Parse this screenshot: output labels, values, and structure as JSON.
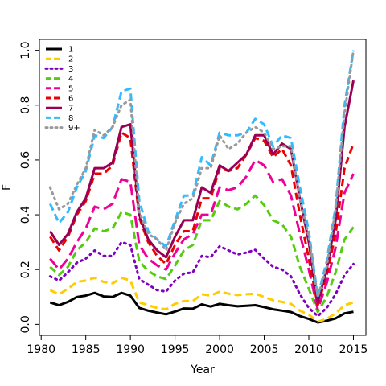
{
  "chart_data": {
    "type": "line",
    "xlabel": "Year",
    "ylabel": "F",
    "xlim": [
      1980.5,
      1915.9
    ],
    "ylim": [
      -0.04,
      1.04
    ],
    "x_ticks": [
      1980,
      1985,
      1990,
      1995,
      2000,
      2005,
      2010,
      2015
    ],
    "y_ticks": [
      0.0,
      0.2,
      0.4,
      0.6,
      0.8,
      1.0
    ],
    "y_tick_labels": [
      "0.0",
      "0.2",
      "0.4",
      "0.6",
      "0.8",
      "1.0"
    ],
    "legend_position": "top-left",
    "grid": false,
    "x": [
      1981,
      1982,
      1983,
      1984,
      1985,
      1986,
      1987,
      1988,
      1989,
      1990,
      1991,
      1992,
      1993,
      1994,
      1995,
      1996,
      1997,
      1998,
      1999,
      2000,
      2001,
      2002,
      2003,
      2004,
      2005,
      2006,
      2007,
      2008,
      2009,
      2010,
      2011,
      2012,
      2013,
      2014,
      2015
    ],
    "series": [
      {
        "name": "1",
        "color": "#000000",
        "dash": "solid",
        "values": [
          0.08,
          0.07,
          0.082,
          0.1,
          0.105,
          0.115,
          0.102,
          0.1,
          0.115,
          0.105,
          0.06,
          0.05,
          0.043,
          0.037,
          0.047,
          0.058,
          0.057,
          0.073,
          0.065,
          0.075,
          0.07,
          0.066,
          0.068,
          0.07,
          0.063,
          0.055,
          0.05,
          0.045,
          0.03,
          0.02,
          0.007,
          0.013,
          0.022,
          0.04,
          0.046
        ]
      },
      {
        "name": "2",
        "color": "#ffcc00",
        "dash": "dashed",
        "values": [
          0.125,
          0.11,
          0.13,
          0.155,
          0.16,
          0.17,
          0.155,
          0.15,
          0.17,
          0.16,
          0.08,
          0.07,
          0.06,
          0.055,
          0.075,
          0.085,
          0.085,
          0.11,
          0.105,
          0.12,
          0.112,
          0.107,
          0.11,
          0.112,
          0.1,
          0.088,
          0.082,
          0.075,
          0.05,
          0.035,
          0.01,
          0.02,
          0.04,
          0.07,
          0.08
        ]
      },
      {
        "name": "3",
        "color": "#7f00bf",
        "dash": "dotted",
        "values": [
          0.175,
          0.16,
          0.19,
          0.225,
          0.24,
          0.27,
          0.25,
          0.25,
          0.3,
          0.29,
          0.165,
          0.145,
          0.125,
          0.12,
          0.16,
          0.185,
          0.19,
          0.25,
          0.245,
          0.285,
          0.27,
          0.255,
          0.262,
          0.272,
          0.24,
          0.21,
          0.2,
          0.175,
          0.11,
          0.06,
          0.03,
          0.06,
          0.11,
          0.18,
          0.22
        ]
      },
      {
        "name": "4",
        "color": "#55cc11",
        "dash": "dashed",
        "values": [
          0.21,
          0.18,
          0.21,
          0.27,
          0.3,
          0.35,
          0.34,
          0.35,
          0.41,
          0.4,
          0.23,
          0.195,
          0.175,
          0.165,
          0.215,
          0.27,
          0.29,
          0.38,
          0.38,
          0.45,
          0.43,
          0.42,
          0.44,
          0.47,
          0.435,
          0.38,
          0.365,
          0.32,
          0.21,
          0.13,
          0.045,
          0.1,
          0.19,
          0.31,
          0.355
        ]
      },
      {
        "name": "5",
        "color": "#ee0099",
        "dash": "longdash",
        "values": [
          0.24,
          0.2,
          0.24,
          0.3,
          0.35,
          0.43,
          0.42,
          0.44,
          0.53,
          0.52,
          0.29,
          0.24,
          0.215,
          0.2,
          0.26,
          0.31,
          0.33,
          0.4,
          0.4,
          0.5,
          0.49,
          0.5,
          0.54,
          0.6,
          0.58,
          0.52,
          0.53,
          0.47,
          0.33,
          0.2,
          0.055,
          0.15,
          0.28,
          0.48,
          0.55
        ]
      },
      {
        "name": "6",
        "color": "#ee0000",
        "dash": "dashed",
        "values": [
          0.32,
          0.27,
          0.32,
          0.4,
          0.45,
          0.55,
          0.55,
          0.58,
          0.7,
          0.68,
          0.39,
          0.3,
          0.25,
          0.22,
          0.29,
          0.34,
          0.34,
          0.46,
          0.46,
          0.57,
          0.56,
          0.57,
          0.62,
          0.68,
          0.67,
          0.61,
          0.64,
          0.58,
          0.4,
          0.24,
          0.07,
          0.18,
          0.33,
          0.57,
          0.66
        ]
      },
      {
        "name": "7",
        "color": "#990055",
        "dash": "solid",
        "values": [
          0.34,
          0.29,
          0.33,
          0.41,
          0.46,
          0.57,
          0.57,
          0.59,
          0.72,
          0.73,
          0.4,
          0.31,
          0.27,
          0.245,
          0.32,
          0.38,
          0.38,
          0.5,
          0.48,
          0.58,
          0.56,
          0.59,
          0.62,
          0.69,
          0.69,
          0.62,
          0.66,
          0.64,
          0.46,
          0.3,
          0.08,
          0.2,
          0.38,
          0.72,
          0.89
        ]
      },
      {
        "name": "8",
        "color": "#33bbff",
        "dash": "dashed",
        "values": [
          0.44,
          0.37,
          0.41,
          0.5,
          0.56,
          0.69,
          0.68,
          0.72,
          0.85,
          0.86,
          0.45,
          0.34,
          0.31,
          0.285,
          0.38,
          0.47,
          0.47,
          0.61,
          0.58,
          0.7,
          0.69,
          0.69,
          0.7,
          0.75,
          0.73,
          0.65,
          0.69,
          0.68,
          0.5,
          0.34,
          0.1,
          0.23,
          0.43,
          0.8,
          1.0
        ]
      },
      {
        "name": "9+",
        "color": "#999999",
        "dash": "dotted",
        "values": [
          0.5,
          0.42,
          0.44,
          0.51,
          0.57,
          0.71,
          0.69,
          0.72,
          0.8,
          0.82,
          0.41,
          0.33,
          0.31,
          0.27,
          0.37,
          0.44,
          0.46,
          0.57,
          0.57,
          0.69,
          0.64,
          0.66,
          0.7,
          0.72,
          0.7,
          0.64,
          0.65,
          0.65,
          0.46,
          0.32,
          0.1,
          0.21,
          0.42,
          0.77,
          1.0
        ]
      }
    ]
  }
}
